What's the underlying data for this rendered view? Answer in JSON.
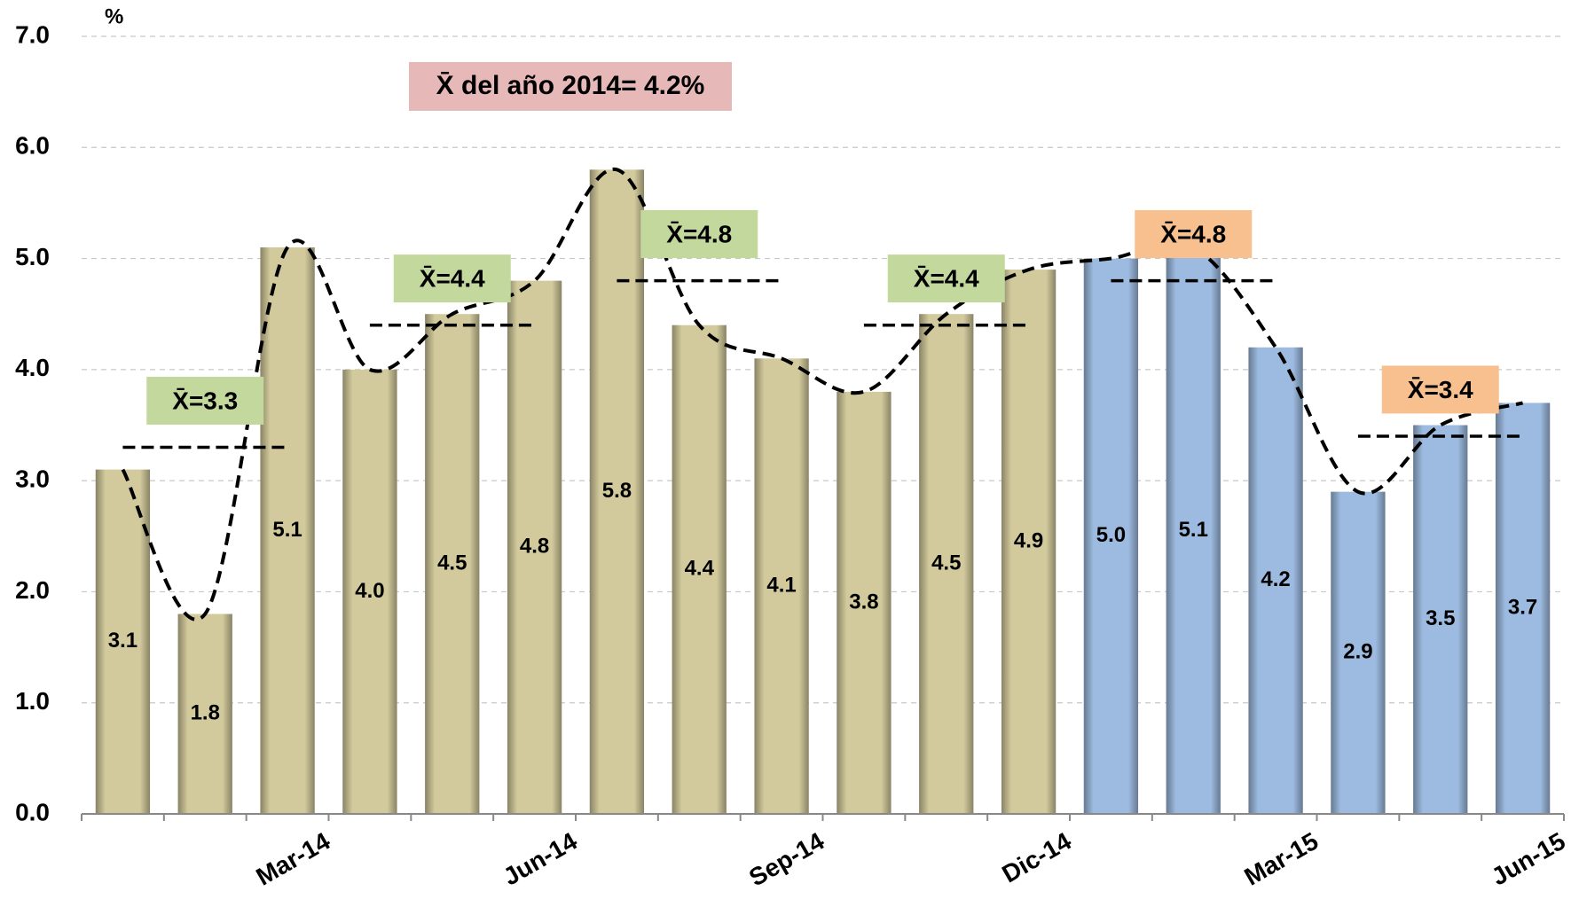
{
  "chart_data": {
    "type": "bar",
    "y_label": "%",
    "annotation": "X̄ del año 2014= 4.2%",
    "categories": [
      null,
      null,
      "Mar-14",
      null,
      null,
      "Jun-14",
      null,
      null,
      "Sep-14",
      null,
      null,
      "Dic-14",
      null,
      null,
      "Mar-15",
      null,
      null,
      "Jun-15"
    ],
    "values": [
      3.1,
      1.8,
      5.1,
      4.0,
      4.5,
      4.8,
      5.8,
      4.4,
      4.1,
      3.8,
      4.5,
      4.9,
      5.0,
      5.1,
      4.2,
      2.9,
      3.5,
      3.7
    ],
    "value_labels": [
      "3.1",
      "1.8",
      "5.1",
      "4.0",
      "4.5",
      "4.8",
      "5.8",
      "4.4",
      "4.1",
      "3.8",
      "4.5",
      "4.9",
      "5.0",
      "5.1",
      "4.2",
      "2.9",
      "3.5",
      "3.7"
    ],
    "colors": [
      "#d2ca9c",
      "#d2ca9c",
      "#d2ca9c",
      "#d2ca9c",
      "#d2ca9c",
      "#d2ca9c",
      "#d2ca9c",
      "#d2ca9c",
      "#d2ca9c",
      "#d2ca9c",
      "#d2ca9c",
      "#d2ca9c",
      "#9dbbe0",
      "#9dbbe0",
      "#9dbbe0",
      "#9dbbe0",
      "#9dbbe0",
      "#9dbbe0"
    ],
    "means": [
      {
        "label": "X̄=3.3",
        "value": 3.3,
        "first": 0,
        "last": 2,
        "color": "#c3d89c"
      },
      {
        "label": "X̄=4.4",
        "value": 4.4,
        "first": 3,
        "last": 5,
        "color": "#c3d89c"
      },
      {
        "label": "X̄=4.8",
        "value": 4.8,
        "first": 6,
        "last": 8,
        "color": "#c3d89c"
      },
      {
        "label": "X̄=4.4",
        "value": 4.4,
        "first": 9,
        "last": 11,
        "color": "#c3d89c"
      },
      {
        "label": "X̄=4.8",
        "value": 4.8,
        "first": 12,
        "last": 14,
        "color": "#f9c08f"
      },
      {
        "label": "X̄=3.4",
        "value": 3.4,
        "first": 15,
        "last": 17,
        "color": "#f9c08f"
      }
    ],
    "ylim": [
      0,
      7
    ],
    "yticks": [
      {
        "value": 0,
        "label": "0.0"
      },
      {
        "value": 1,
        "label": "1.0"
      },
      {
        "value": 2,
        "label": "2.0"
      },
      {
        "value": 3,
        "label": "3.0"
      },
      {
        "value": 4,
        "label": "4.0"
      },
      {
        "value": 5,
        "label": "5.0"
      },
      {
        "value": 6,
        "label": "6.0"
      },
      {
        "value": 7,
        "label": "7.0"
      }
    ],
    "grid": true
  }
}
